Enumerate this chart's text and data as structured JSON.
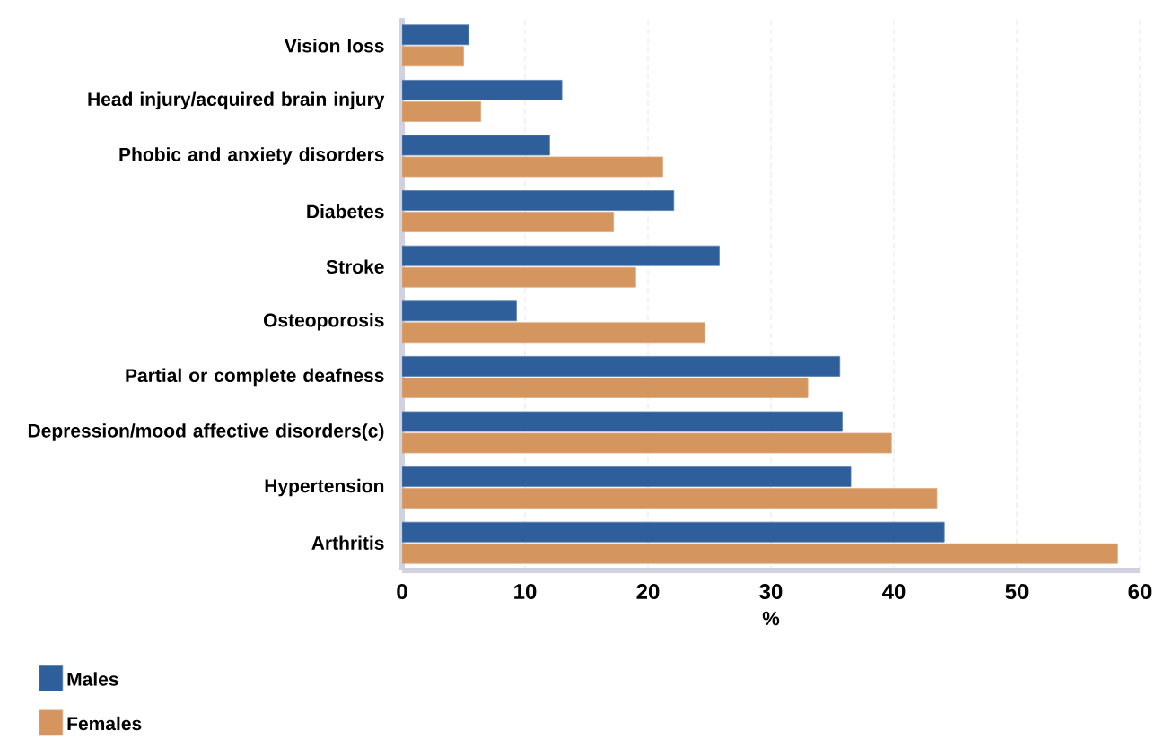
{
  "chart_data": {
    "type": "bar",
    "orientation": "horizontal",
    "categories": [
      "Vision loss",
      "Head injury/acquired brain injury",
      "Phobic and anxiety disorders",
      "Diabetes",
      "Stroke",
      "Osteoporosis",
      "Partial or complete deafness",
      "Depression/mood affective disorders(c)",
      "Hypertension",
      "Arthritis"
    ],
    "series": [
      {
        "name": "Males",
        "color": "#2e5f9a",
        "values": [
          5.4,
          13.0,
          12.0,
          22.1,
          25.8,
          9.3,
          35.6,
          35.8,
          36.5,
          44.1
        ]
      },
      {
        "name": "Females",
        "color": "#d4955e",
        "values": [
          5.0,
          6.4,
          21.2,
          17.2,
          19.0,
          24.6,
          33.0,
          39.8,
          43.5,
          58.2
        ]
      }
    ],
    "xlabel": "%",
    "xlim": [
      0,
      60
    ],
    "xticks": [
      0,
      10,
      20,
      30,
      40,
      50,
      60
    ],
    "grid": "x",
    "legend": "bottom left"
  }
}
